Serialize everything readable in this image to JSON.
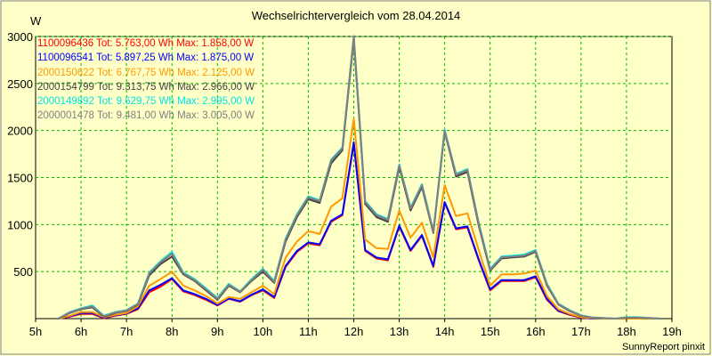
{
  "chart_data": {
    "type": "line",
    "title": "Wechselrichtervergleich vom 28.04.2014",
    "ylabel": "W",
    "footer": "SunnyReport pinxit",
    "ylim": [
      0,
      3000
    ],
    "xlim": [
      5,
      19
    ],
    "y_ticks": [
      "500",
      "1000",
      "1500",
      "2000",
      "2500",
      "3000"
    ],
    "x_ticks": [
      "5h",
      "6h",
      "7h",
      "8h",
      "9h",
      "10h",
      "11h",
      "12h",
      "13h",
      "14h",
      "15h",
      "16h",
      "17h",
      "18h",
      "19h"
    ],
    "grid": true,
    "legend_placement": "top-left",
    "background": "#ffffc8",
    "x": [
      5.5,
      5.75,
      6.0,
      6.25,
      6.5,
      6.75,
      7.0,
      7.25,
      7.5,
      7.75,
      8.0,
      8.25,
      8.5,
      8.75,
      9.0,
      9.25,
      9.5,
      9.75,
      10.0,
      10.25,
      10.5,
      10.75,
      11.0,
      11.25,
      11.5,
      11.75,
      12.0,
      12.25,
      12.5,
      12.75,
      13.0,
      13.25,
      13.5,
      13.75,
      14.0,
      14.25,
      14.5,
      14.75,
      15.0,
      15.25,
      15.5,
      15.75,
      16.0,
      16.25,
      16.5,
      16.75,
      17.0,
      17.25,
      17.5,
      17.75,
      18.0,
      18.25,
      18.5,
      18.75
    ],
    "series": [
      {
        "name": "1100096436 Tot: 5.763,00 Wh Max: 1.858,00 W",
        "color": "#ff0000",
        "values": [
          0,
          20,
          50,
          50,
          5,
          30,
          50,
          100,
          280,
          340,
          420,
          290,
          250,
          200,
          140,
          210,
          180,
          250,
          300,
          220,
          550,
          710,
          800,
          780,
          1030,
          1100,
          1858,
          720,
          640,
          620,
          980,
          720,
          880,
          550,
          1230,
          950,
          970,
          620,
          300,
          400,
          400,
          400,
          440,
          200,
          80,
          40,
          10,
          0,
          0,
          0,
          0,
          0,
          0,
          0
        ]
      },
      {
        "name": "1100096541 Tot: 5.897,25 Wh Max: 1.875,00 W",
        "color": "#0000ff",
        "values": [
          0,
          25,
          60,
          60,
          10,
          35,
          55,
          110,
          300,
          360,
          430,
          300,
          260,
          210,
          145,
          215,
          185,
          255,
          310,
          230,
          560,
          720,
          810,
          790,
          1040,
          1110,
          1875,
          730,
          650,
          630,
          990,
          730,
          890,
          560,
          1240,
          960,
          980,
          630,
          310,
          410,
          410,
          410,
          450,
          210,
          85,
          45,
          12,
          0,
          0,
          0,
          0,
          0,
          0,
          0
        ]
      },
      {
        "name": "2000150622 Tot: 6.767,75 Wh Max: 2.125,00 W",
        "color": "#ff9900",
        "values": [
          0,
          30,
          70,
          70,
          15,
          40,
          60,
          130,
          350,
          420,
          500,
          350,
          300,
          240,
          160,
          230,
          210,
          280,
          350,
          260,
          650,
          820,
          930,
          900,
          1190,
          1280,
          2125,
          840,
          750,
          740,
          1150,
          860,
          1020,
          650,
          1420,
          1090,
          1120,
          730,
          350,
          470,
          470,
          480,
          510,
          240,
          100,
          50,
          15,
          5,
          0,
          0,
          0,
          0,
          0,
          0
        ]
      },
      {
        "name": "2000154799 Tot: 9.313,75 Wh Max: 2.966,00 W",
        "color": "#444444",
        "values": [
          0,
          60,
          100,
          120,
          20,
          60,
          80,
          150,
          460,
          580,
          660,
          470,
          400,
          300,
          200,
          350,
          280,
          400,
          500,
          380,
          820,
          1080,
          1270,
          1230,
          1650,
          1790,
          2966,
          1220,
          1080,
          1030,
          1610,
          1150,
          1400,
          910,
          1990,
          1510,
          1560,
          990,
          510,
          640,
          650,
          660,
          710,
          350,
          150,
          80,
          30,
          10,
          5,
          0,
          10,
          10,
          5,
          0
        ]
      },
      {
        "name": "2000149892 Tot: 9.629,75 Wh Max: 2.995,00 W",
        "color": "#00e5e5",
        "values": [
          0,
          70,
          110,
          140,
          30,
          70,
          90,
          160,
          490,
          610,
          710,
          490,
          420,
          320,
          220,
          370,
          290,
          420,
          530,
          400,
          850,
          1110,
          1300,
          1260,
          1690,
          1820,
          2995,
          1250,
          1110,
          1060,
          1640,
          1180,
          1430,
          930,
          2010,
          1540,
          1590,
          1020,
          530,
          660,
          670,
          680,
          730,
          370,
          160,
          90,
          35,
          12,
          8,
          0,
          15,
          15,
          8,
          0
        ]
      },
      {
        "name": "2000001478 Tot: 9.481,00 Wh Max: 3.005,00 W",
        "color": "#808080",
        "values": [
          0,
          65,
          105,
          130,
          25,
          65,
          85,
          155,
          480,
          600,
          690,
          480,
          410,
          310,
          210,
          360,
          285,
          410,
          520,
          390,
          840,
          1100,
          1290,
          1250,
          1680,
          1810,
          3005,
          1240,
          1100,
          1050,
          1630,
          1170,
          1420,
          920,
          2000,
          1530,
          1580,
          1010,
          520,
          650,
          660,
          670,
          720,
          360,
          155,
          85,
          32,
          11,
          6,
          0,
          12,
          12,
          6,
          0
        ]
      }
    ]
  }
}
